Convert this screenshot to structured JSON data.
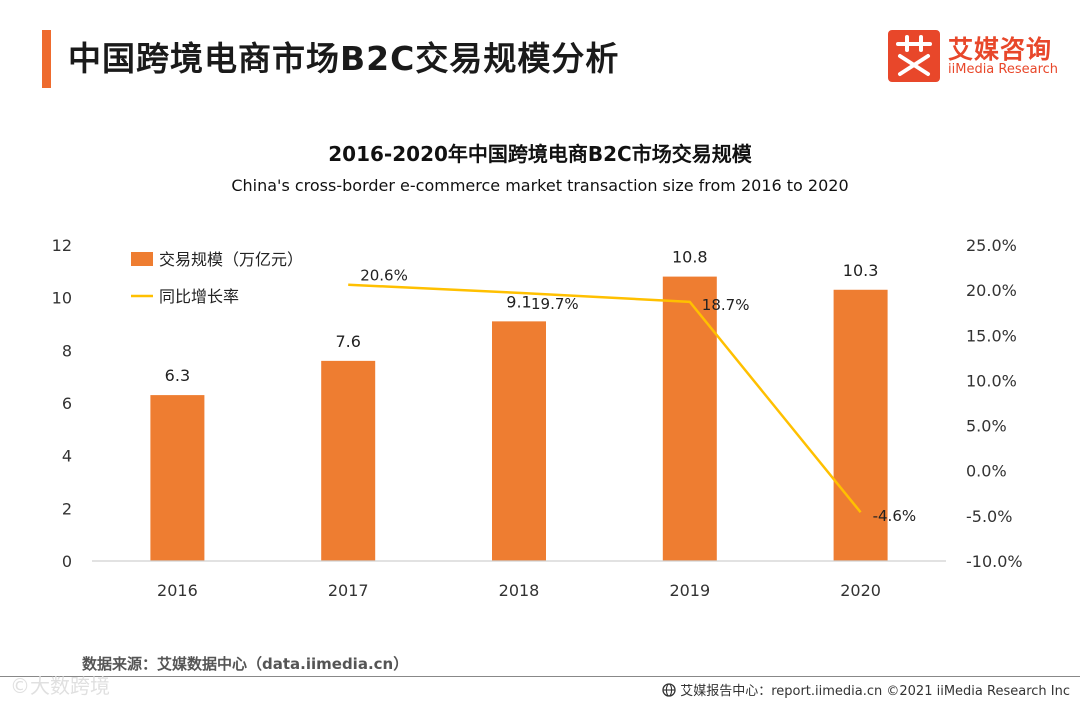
{
  "page": {
    "title": "中国跨境电商市场B2C交易规模分析",
    "source": "数据来源：艾媒数据中心（data.iimedia.cn）",
    "footer": "艾媒报告中心：report.iimedia.cn  ©2021  iiMedia Research  Inc",
    "watermark": "©大数跨境"
  },
  "logo": {
    "cn": "艾媒咨询",
    "en": "iiMedia Research",
    "brand_color": "#e8472a"
  },
  "chart_data": {
    "type": "bar",
    "title": "2016-2020年中国跨境电商B2C市场交易规模",
    "subtitle": "China's cross-border e-commerce market transaction size from 2016 to 2020",
    "categories": [
      "2016",
      "2017",
      "2018",
      "2019",
      "2020"
    ],
    "series": [
      {
        "name": "交易规模（万亿元）",
        "kind": "bar",
        "axis": "left",
        "color": "#ee7d31",
        "values": [
          6.3,
          7.6,
          9.1,
          10.8,
          10.3
        ],
        "labels": [
          "6.3",
          "7.6",
          "9.1",
          "10.8",
          "10.3"
        ]
      },
      {
        "name": "同比增长率",
        "kind": "line",
        "axis": "right",
        "color": "#ffc000",
        "values": [
          null,
          20.6,
          19.7,
          18.7,
          -4.6
        ],
        "labels": [
          "",
          "20.6%",
          "19.7%",
          "18.7%",
          "-4.6%"
        ]
      }
    ],
    "y_left": {
      "min": 0,
      "max": 12,
      "ticks": [
        "0",
        "2",
        "4",
        "6",
        "8",
        "10",
        "12"
      ]
    },
    "y_right": {
      "min": -10,
      "max": 25,
      "ticks": [
        "-10.0%",
        "-5.0%",
        "0.0%",
        "5.0%",
        "10.0%",
        "15.0%",
        "20.0%",
        "25.0%"
      ]
    },
    "legend_position": "top-left",
    "grid": false
  }
}
